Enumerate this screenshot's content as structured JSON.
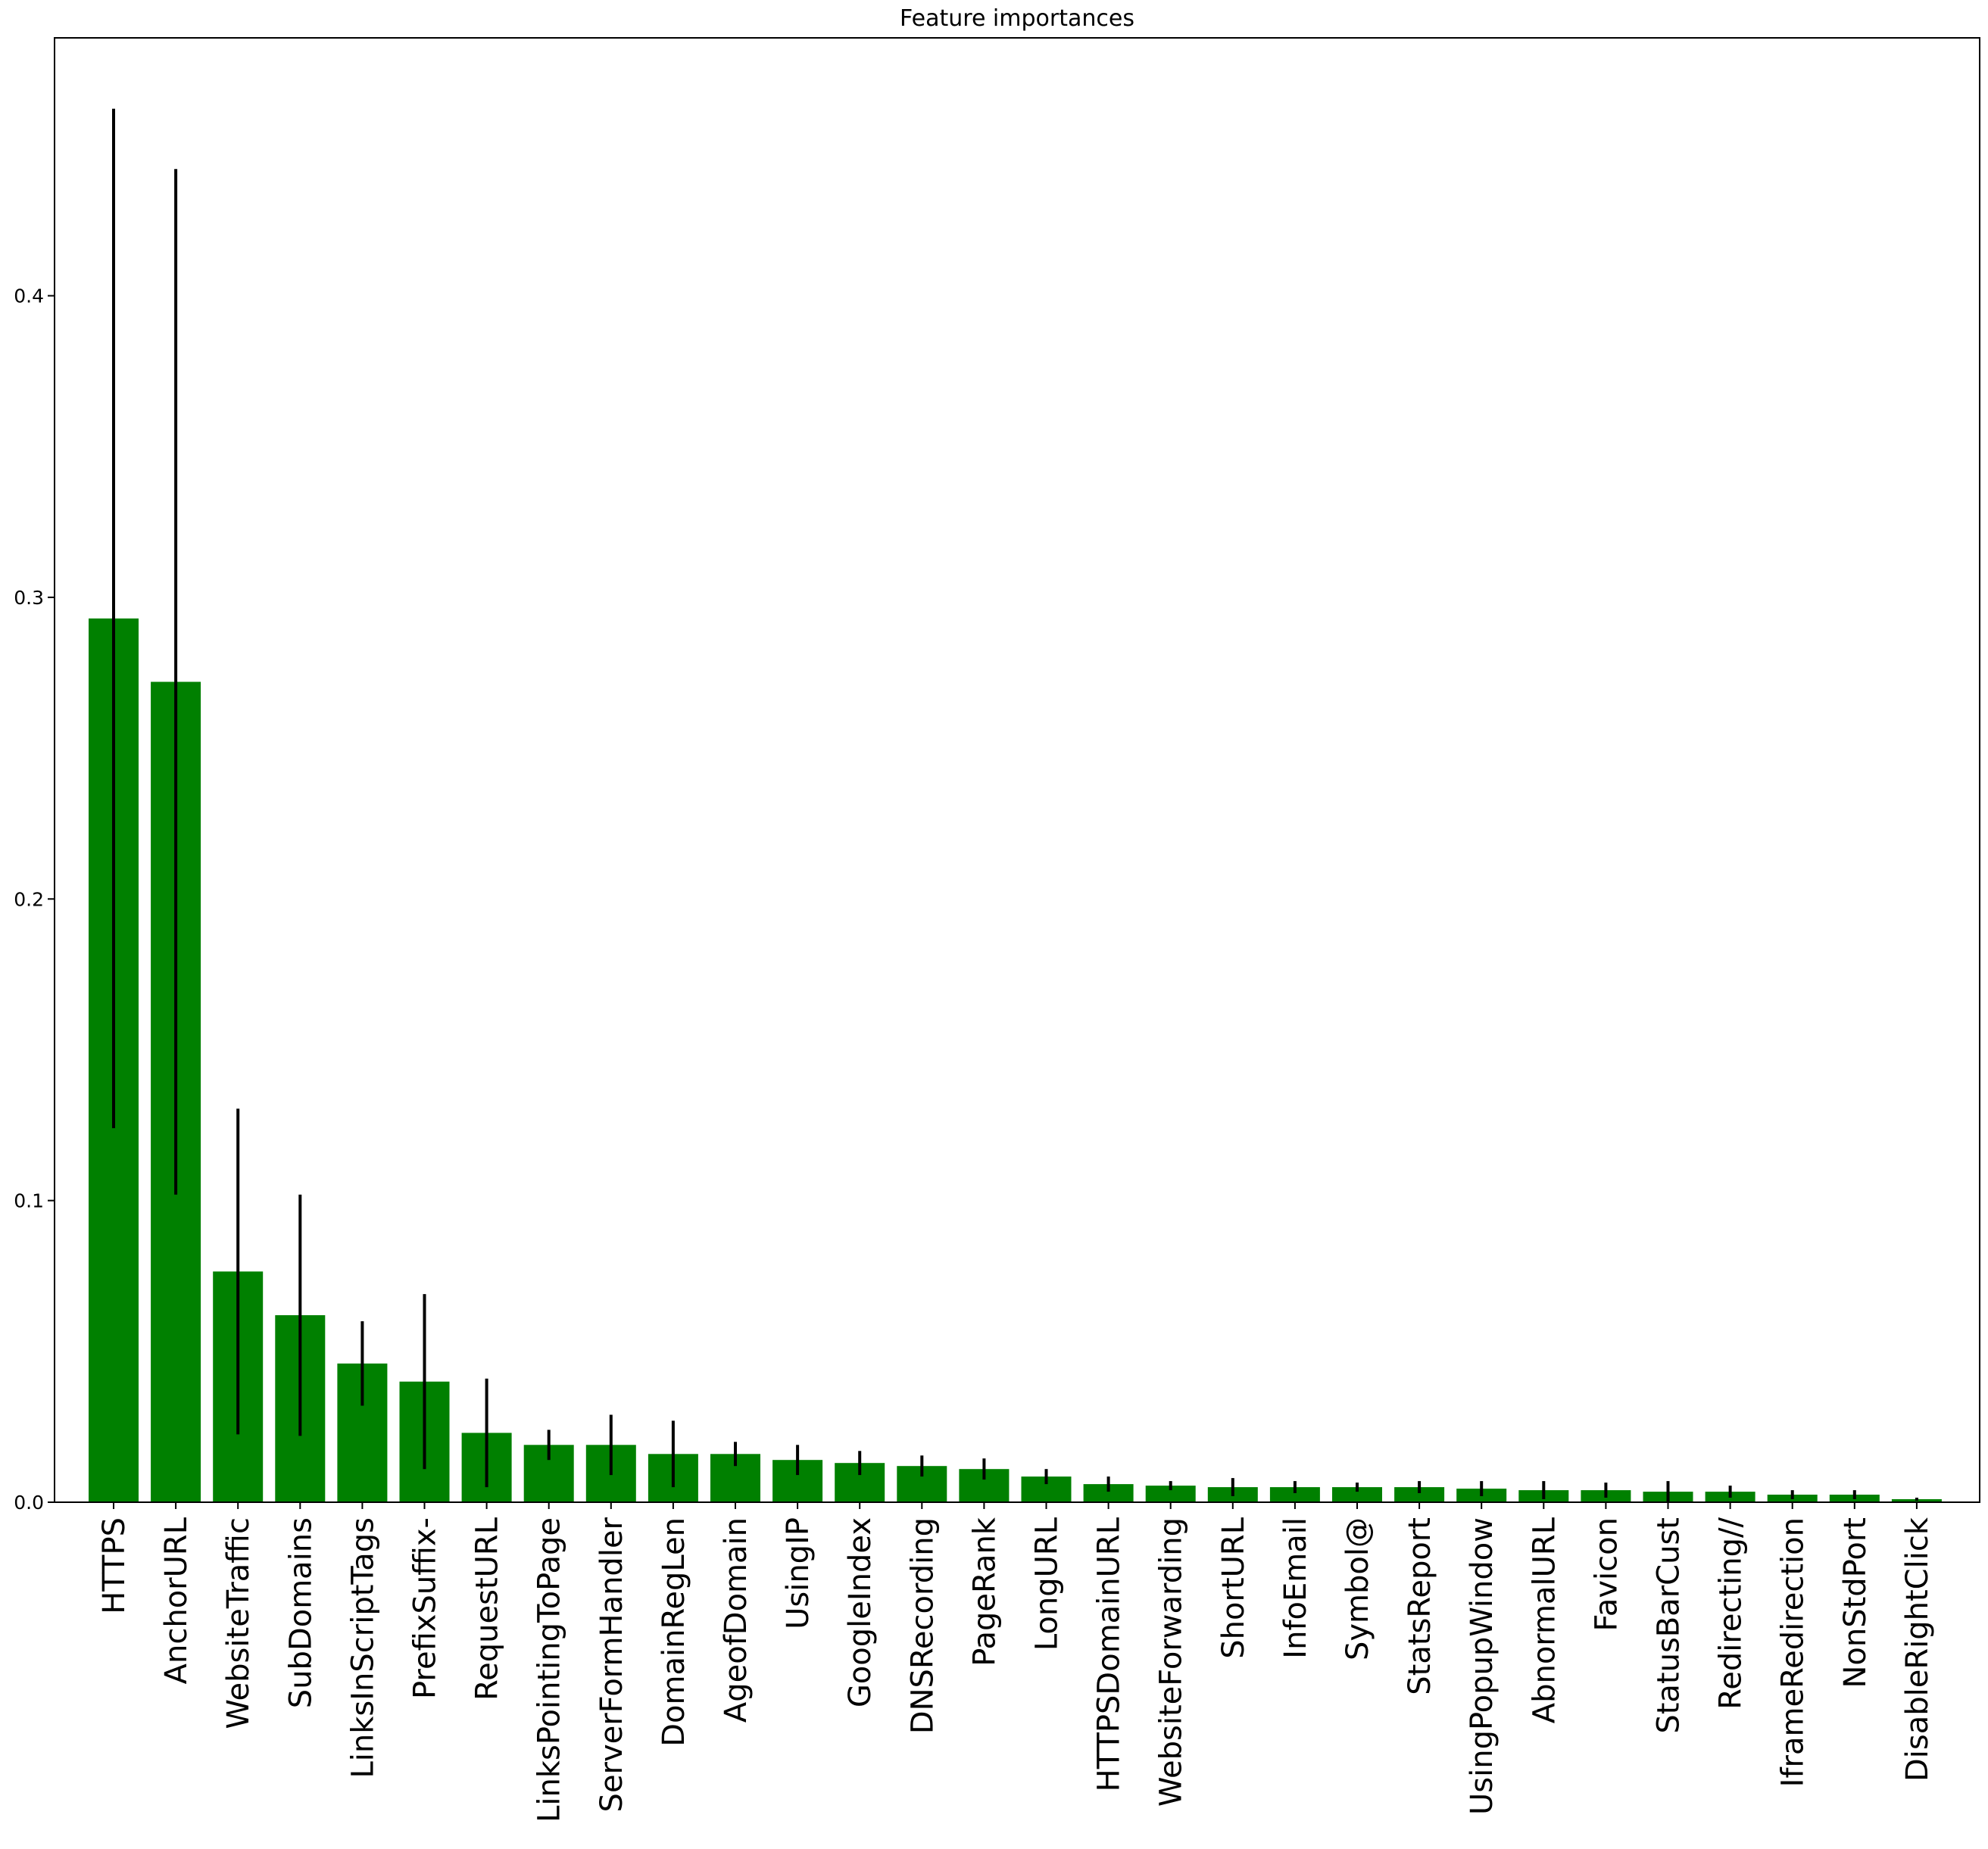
{
  "chart_data": {
    "type": "bar",
    "title": "Feature importances",
    "xlabel": "",
    "ylabel": "",
    "ylim": [
      0,
      0.4855
    ],
    "yticks": [
      0.0,
      0.1,
      0.2,
      0.3,
      0.4
    ],
    "ytick_labels": [
      "0.0",
      "0.1",
      "0.2",
      "0.3",
      "0.4"
    ],
    "bar_color": "#008000",
    "error_bar_color": "#000000",
    "grid": false,
    "legend": "none",
    "categories": [
      "HTTPS",
      "AnchorURL",
      "WebsiteTraffic",
      "SubDomains",
      "LinksInScriptTags",
      "PrefixSuffix-",
      "RequestURL",
      "LinksPointingToPage",
      "ServerFormHandler",
      "DomainRegLen",
      "AgeofDomain",
      "UsingIP",
      "GoogleIndex",
      "DNSRecording",
      "PageRank",
      "LongURL",
      "HTTPSDomainURL",
      "WebsiteForwarding",
      "ShortURL",
      "InfoEmail",
      "Symbol@",
      "StatsReport",
      "UsingPopupWindow",
      "AbnormalURL",
      "Favicon",
      "StatusBarCust",
      "Redirecting//",
      "IframeRedirection",
      "NonStdPort",
      "DisableRightClick"
    ],
    "values": [
      0.293,
      0.272,
      0.0765,
      0.062,
      0.046,
      0.04,
      0.023,
      0.019,
      0.019,
      0.016,
      0.016,
      0.014,
      0.013,
      0.012,
      0.011,
      0.0085,
      0.006,
      0.0055,
      0.005,
      0.005,
      0.005,
      0.005,
      0.0045,
      0.004,
      0.004,
      0.0035,
      0.0035,
      0.0025,
      0.0025,
      0.001
    ],
    "errors": [
      0.169,
      0.17,
      0.054,
      0.04,
      0.014,
      0.029,
      0.018,
      0.005,
      0.01,
      0.011,
      0.004,
      0.005,
      0.004,
      0.0035,
      0.0035,
      0.0025,
      0.0025,
      0.0015,
      0.003,
      0.002,
      0.0015,
      0.002,
      0.0025,
      0.003,
      0.0025,
      0.0035,
      0.002,
      0.0015,
      0.0015,
      0.0005
    ]
  }
}
